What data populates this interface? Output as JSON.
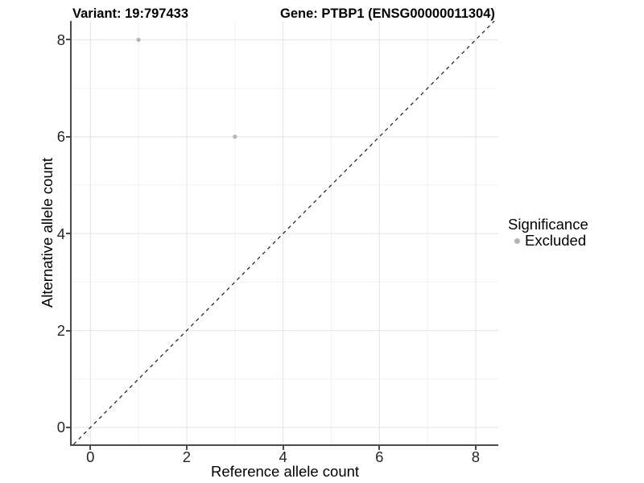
{
  "figure": {
    "title_left": "Variant: 19:797433",
    "title_right": "Gene: PTBP1 (ENSG00000011304)"
  },
  "chart_data": {
    "type": "scatter",
    "title": "Variant: 19:797433    Gene: PTBP1 (ENSG00000011304)",
    "xlabel": "Reference allele count",
    "ylabel": "Alternative allele count",
    "xlim": [
      -0.39,
      8.47
    ],
    "ylim": [
      -0.35,
      8.39
    ],
    "x_ticks": [
      0,
      2,
      4,
      6,
      8
    ],
    "y_ticks": [
      0,
      2,
      4,
      6,
      8
    ],
    "x_minor_ticks": [
      1,
      3,
      5,
      7
    ],
    "y_minor_ticks": [
      1,
      3,
      5,
      7
    ],
    "grid": "major and minor gridlines on white panel",
    "legend_position": "right",
    "series": [
      {
        "name": "Excluded",
        "marker": "circle",
        "color": "#b5b5b5",
        "points": [
          {
            "x": 1,
            "y": 8
          },
          {
            "x": 3,
            "y": 6
          }
        ]
      }
    ],
    "reference_line": {
      "kind": "identity y=x",
      "style": "dashed",
      "color": "#1a1a1a"
    },
    "legend": {
      "title": "Significance",
      "entries": [
        {
          "label": "Excluded",
          "color": "#b5b5b5",
          "marker": "circle"
        }
      ]
    }
  },
  "colors": {
    "background": "#ffffff",
    "axis_line": "#4a4a4a",
    "grid_major": "#e7e7e7",
    "grid_minor": "#f2f2f2",
    "tick_text": "#262626",
    "title_text": "#000000",
    "point": "#b5b5b5"
  }
}
